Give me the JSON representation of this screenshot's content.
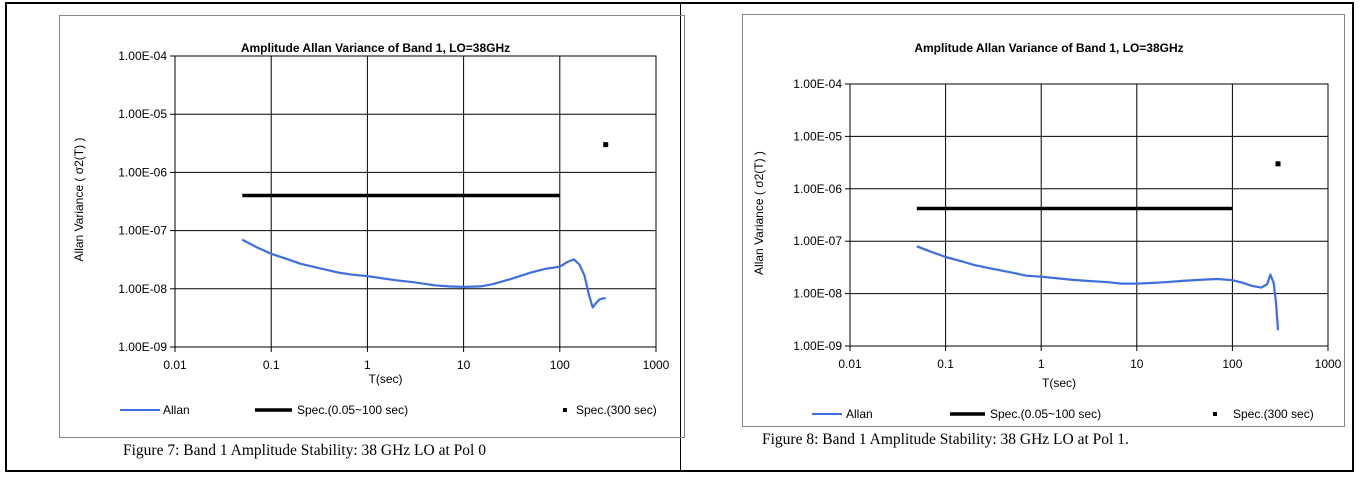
{
  "captions": {
    "left": "Figure 7: Band 1 Amplitude Stability: 38 GHz LO at Pol 0",
    "right": "Figure 8: Band 1 Amplitude Stability: 38 GHz LO at Pol 1."
  },
  "colors": {
    "allan": "#3f6ee0",
    "spec": "#000000",
    "grid": "#000000"
  },
  "chart_data": [
    {
      "type": "line",
      "title": "Amplitude Allan Variance of Band 1, LO=38GHz",
      "xlabel": "T(sec)",
      "ylabel": "Allan Variance ( σ2(T) )",
      "xscale": "log",
      "yscale": "log",
      "xlim": [
        0.01,
        1000
      ],
      "ylim": [
        1e-09,
        0.0001
      ],
      "x_ticks": [
        "0.01",
        "0.1",
        "1",
        "10",
        "100",
        "1000"
      ],
      "y_ticks": [
        "1.00E-09",
        "1.00E-08",
        "1.00E-07",
        "1.00E-06",
        "1.00E-05",
        "1.00E-04"
      ],
      "grid": true,
      "legend_position": "bottom",
      "series": [
        {
          "name": "Allan",
          "kind": "line",
          "points": [
            [
              0.05,
              7e-08
            ],
            [
              0.07,
              5.2e-08
            ],
            [
              0.1,
              4e-08
            ],
            [
              0.15,
              3.2e-08
            ],
            [
              0.2,
              2.7e-08
            ],
            [
              0.3,
              2.3e-08
            ],
            [
              0.5,
              1.9e-08
            ],
            [
              0.7,
              1.75e-08
            ],
            [
              1,
              1.65e-08
            ],
            [
              1.5,
              1.5e-08
            ],
            [
              2,
              1.4e-08
            ],
            [
              3,
              1.3e-08
            ],
            [
              5,
              1.15e-08
            ],
            [
              7,
              1.1e-08
            ],
            [
              10,
              1.08e-08
            ],
            [
              15,
              1.1e-08
            ],
            [
              20,
              1.2e-08
            ],
            [
              30,
              1.45e-08
            ],
            [
              50,
              1.9e-08
            ],
            [
              70,
              2.2e-08
            ],
            [
              100,
              2.4e-08
            ],
            [
              120,
              2.9e-08
            ],
            [
              140,
              3.2e-08
            ],
            [
              160,
              2.6e-08
            ],
            [
              180,
              1.7e-08
            ],
            [
              200,
              8e-09
            ],
            [
              220,
              4.8e-09
            ],
            [
              240,
              5.8e-09
            ],
            [
              260,
              6.6e-09
            ],
            [
              280,
              6.8e-09
            ],
            [
              300,
              6.9e-09
            ]
          ]
        },
        {
          "name": "Spec.(0.05~100 sec)",
          "kind": "segment",
          "points": [
            [
              0.05,
              4e-07
            ],
            [
              100,
              4e-07
            ]
          ]
        },
        {
          "name": "Spec.(300 sec)",
          "kind": "marker",
          "points": [
            [
              300,
              3e-06
            ]
          ]
        }
      ]
    },
    {
      "type": "line",
      "title": "Amplitude Allan Variance of Band 1, LO=38GHz",
      "xlabel": "T(sec)",
      "ylabel": "Allan Variance ( σ2(T) )",
      "xscale": "log",
      "yscale": "log",
      "xlim": [
        0.01,
        1000
      ],
      "ylim": [
        1e-09,
        0.0001
      ],
      "x_ticks": [
        "0.01",
        "0.1",
        "1",
        "10",
        "100",
        "1000"
      ],
      "y_ticks": [
        "1.00E-09",
        "1.00E-08",
        "1.00E-07",
        "1.00E-06",
        "1.00E-05",
        "1.00E-04"
      ],
      "grid": true,
      "legend_position": "bottom",
      "series": [
        {
          "name": "Allan",
          "kind": "line",
          "points": [
            [
              0.05,
              8e-08
            ],
            [
              0.07,
              6.3e-08
            ],
            [
              0.1,
              5e-08
            ],
            [
              0.15,
              4.1e-08
            ],
            [
              0.2,
              3.5e-08
            ],
            [
              0.3,
              3e-08
            ],
            [
              0.5,
              2.5e-08
            ],
            [
              0.7,
              2.2e-08
            ],
            [
              1,
              2.1e-08
            ],
            [
              1.5,
              1.95e-08
            ],
            [
              2,
              1.85e-08
            ],
            [
              3,
              1.75e-08
            ],
            [
              5,
              1.65e-08
            ],
            [
              7,
              1.55e-08
            ],
            [
              10,
              1.55e-08
            ],
            [
              15,
              1.6e-08
            ],
            [
              20,
              1.65e-08
            ],
            [
              30,
              1.75e-08
            ],
            [
              50,
              1.85e-08
            ],
            [
              70,
              1.9e-08
            ],
            [
              100,
              1.8e-08
            ],
            [
              130,
              1.6e-08
            ],
            [
              160,
              1.4e-08
            ],
            [
              200,
              1.3e-08
            ],
            [
              230,
              1.5e-08
            ],
            [
              250,
              2.3e-08
            ],
            [
              270,
              1.6e-08
            ],
            [
              285,
              7e-09
            ],
            [
              300,
              2e-09
            ]
          ]
        },
        {
          "name": "Spec.(0.05~100 sec)",
          "kind": "segment",
          "points": [
            [
              0.05,
              4.2e-07
            ],
            [
              100,
              4.2e-07
            ]
          ]
        },
        {
          "name": "Spec.(300 sec)",
          "kind": "marker",
          "points": [
            [
              300,
              3e-06
            ]
          ]
        }
      ]
    }
  ]
}
